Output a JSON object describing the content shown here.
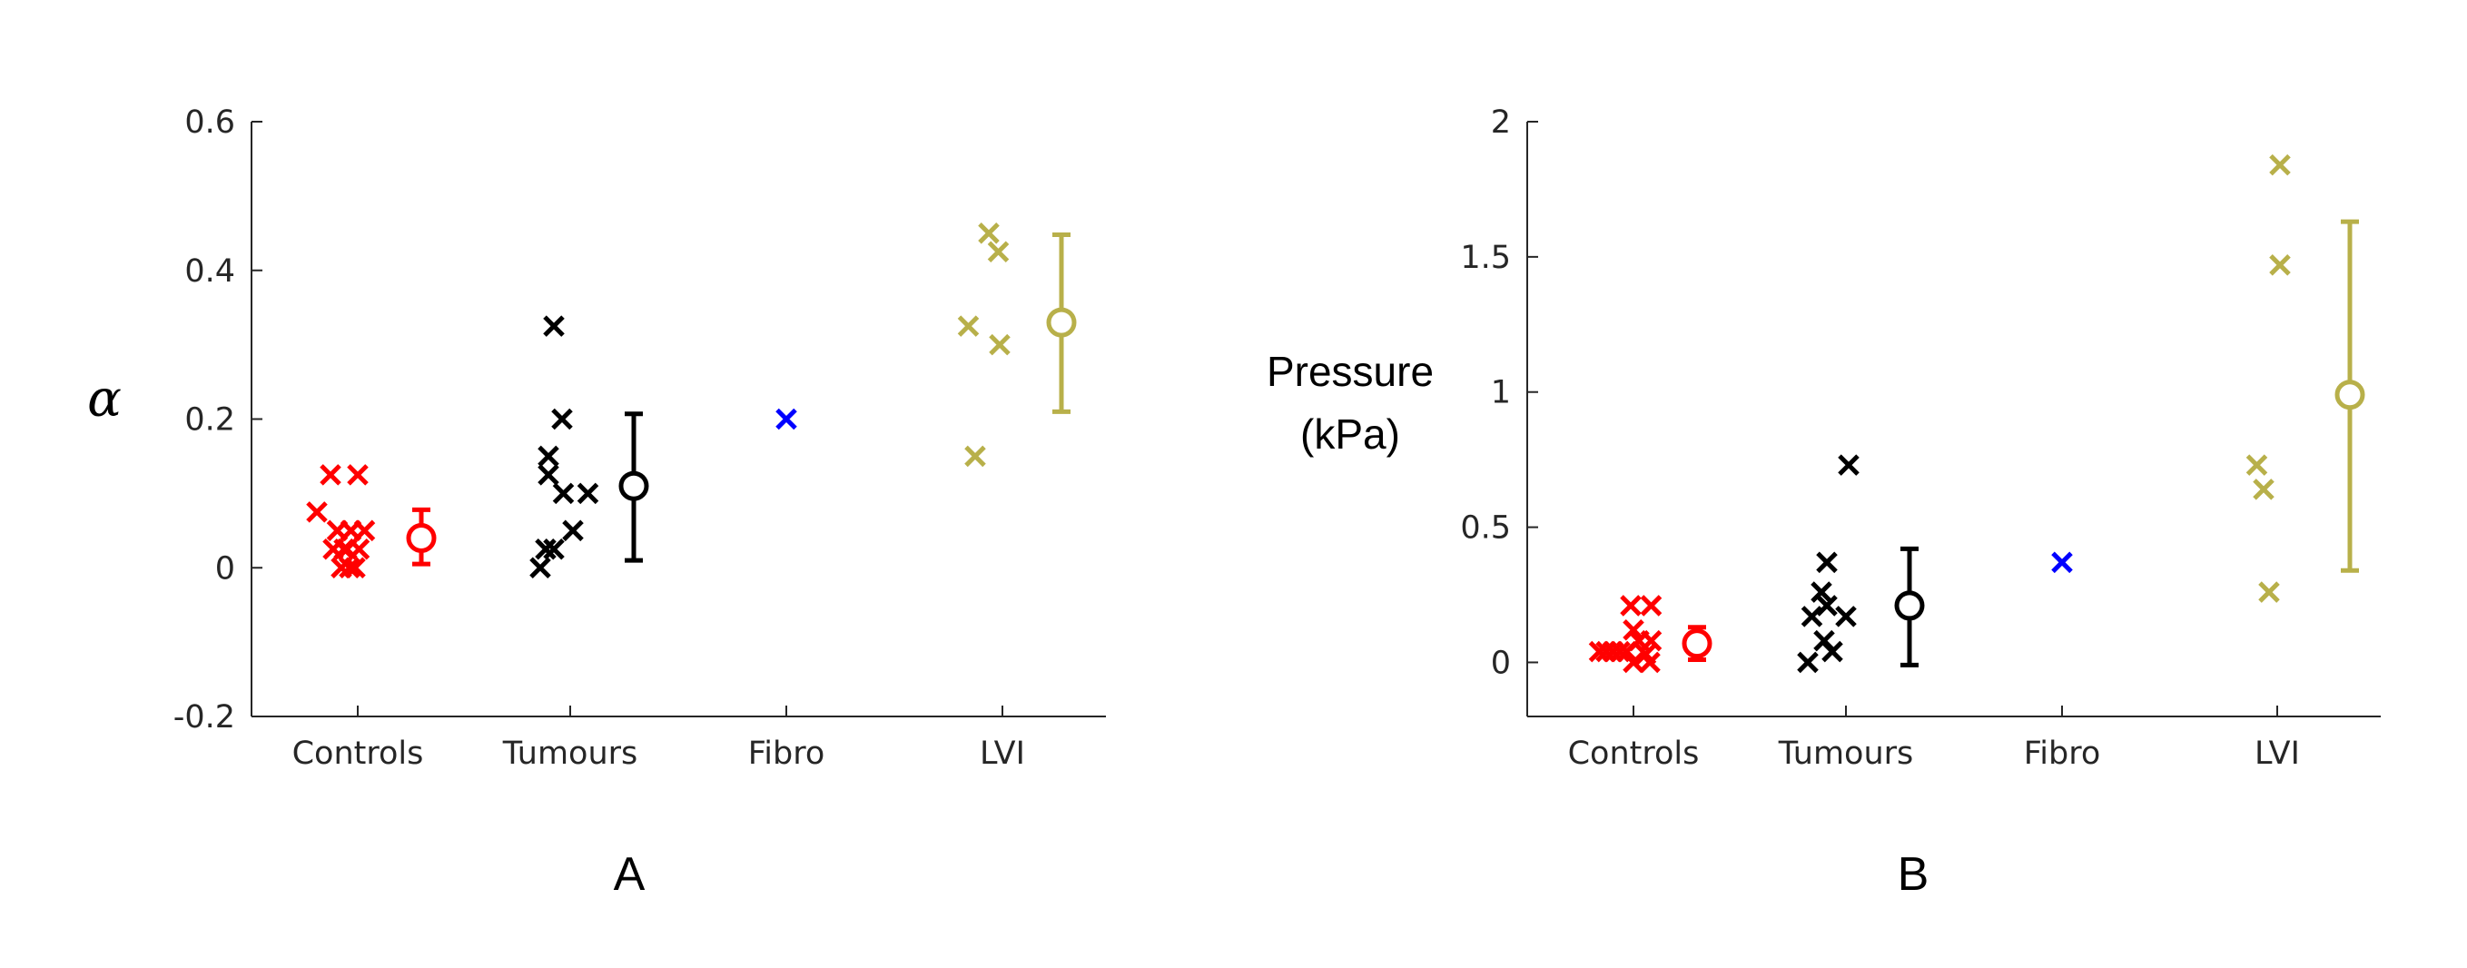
{
  "chart_data": [
    {
      "panel_label": "A",
      "type": "scatter",
      "ylabel": "α",
      "ylim": [
        -0.2,
        0.6
      ],
      "yticks": [
        "-0.2",
        "0",
        "0.2",
        "0.4",
        "0.6"
      ],
      "categories": [
        "Controls",
        "Tumours",
        "Fibro",
        "LVI"
      ],
      "grid": false,
      "series": [
        {
          "category": "Controls",
          "color": "#ff0000",
          "points": [
            [
              -0.3,
              0.075
            ],
            [
              -0.2,
              0.125
            ],
            [
              -0.15,
              0.05
            ],
            [
              -0.1,
              0.025
            ],
            [
              -0.05,
              0.05
            ],
            [
              0,
              0.125
            ],
            [
              0.05,
              0.05
            ],
            [
              -0.12,
              0.0
            ],
            [
              -0.06,
              0.0
            ],
            [
              -0.18,
              0.025
            ],
            [
              -0.02,
              0.0
            ],
            [
              0.01,
              0.025
            ],
            [
              -0.08,
              0.025
            ]
          ],
          "mean": 0.04,
          "err_low": 0.005,
          "err_high": 0.078
        },
        {
          "category": "Tumours",
          "color": "#000000",
          "points": [
            [
              -0.22,
              0.0
            ],
            [
              -0.18,
              0.025
            ],
            [
              -0.12,
              0.025
            ],
            [
              -0.16,
              0.15
            ],
            [
              -0.16,
              0.125
            ],
            [
              -0.12,
              0.325
            ],
            [
              -0.06,
              0.2
            ],
            [
              -0.05,
              0.1
            ],
            [
              0.02,
              0.05
            ],
            [
              0.13,
              0.1
            ]
          ],
          "mean": 0.11,
          "err_low": 0.01,
          "err_high": 0.207
        },
        {
          "category": "Fibro",
          "color": "#0000ff",
          "points": [
            [
              0,
              0.2
            ]
          ]
        },
        {
          "category": "LVI",
          "color": "#b8b04a",
          "points": [
            [
              -0.25,
              0.325
            ],
            [
              -0.2,
              0.15
            ],
            [
              -0.1,
              0.45
            ],
            [
              -0.03,
              0.425
            ],
            [
              -0.02,
              0.3
            ]
          ],
          "mean": 0.33,
          "err_low": 0.21,
          "err_high": 0.448
        }
      ]
    },
    {
      "panel_label": "B",
      "type": "scatter",
      "ylabel_line1": "Pressure",
      "ylabel_line2": "(kPa)",
      "ylim": [
        -0.2,
        2
      ],
      "yticks": [
        "0",
        "0.5",
        "1",
        "1.5",
        "2"
      ],
      "categories": [
        "Controls",
        "Tumours",
        "Fibro",
        "LVI"
      ],
      "grid": false,
      "series": [
        {
          "category": "Controls",
          "color": "#ff0000",
          "points": [
            [
              -0.25,
              0.04
            ],
            [
              -0.2,
              0.04
            ],
            [
              -0.15,
              0.04
            ],
            [
              -0.1,
              0.04
            ],
            [
              -0.05,
              0.04
            ],
            [
              -0.02,
              0.21
            ],
            [
              0.0,
              0.12
            ],
            [
              0.04,
              0.08
            ],
            [
              0.0,
              0.0
            ],
            [
              0.09,
              0.03
            ],
            [
              0.12,
              0.0
            ],
            [
              0.13,
              0.21
            ],
            [
              0.13,
              0.08
            ]
          ],
          "mean": 0.07,
          "err_low": 0.01,
          "err_high": 0.13
        },
        {
          "category": "Tumours",
          "color": "#000000",
          "points": [
            [
              -0.28,
              0.0
            ],
            [
              -0.25,
              0.17
            ],
            [
              -0.18,
              0.26
            ],
            [
              -0.16,
              0.08
            ],
            [
              -0.14,
              0.21
            ],
            [
              -0.14,
              0.37
            ],
            [
              -0.1,
              0.04
            ],
            [
              0.0,
              0.17
            ],
            [
              0.02,
              0.73
            ]
          ],
          "mean": 0.21,
          "err_low": -0.01,
          "err_high": 0.42
        },
        {
          "category": "Fibro",
          "color": "#0000ff",
          "points": [
            [
              0,
              0.37
            ]
          ]
        },
        {
          "category": "LVI",
          "color": "#b8b04a",
          "points": [
            [
              -0.15,
              0.73
            ],
            [
              -0.1,
              0.64
            ],
            [
              -0.06,
              0.26
            ],
            [
              0.02,
              1.84
            ],
            [
              0.02,
              1.47
            ]
          ],
          "mean": 0.99,
          "err_low": 0.34,
          "err_high": 1.63
        }
      ]
    }
  ]
}
